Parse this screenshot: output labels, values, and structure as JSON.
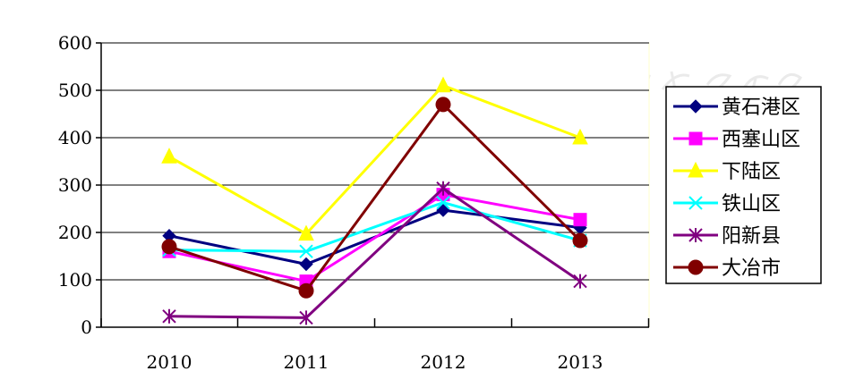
{
  "chart_data": {
    "type": "line",
    "categories": [
      "2010",
      "2011",
      "2012",
      "2013"
    ],
    "ylim": [
      0,
      600
    ],
    "yticks": [
      0,
      100,
      200,
      300,
      400,
      500,
      600
    ],
    "grid": true,
    "legend_position": "right",
    "series": [
      {
        "name": "黄石港区",
        "values": [
          193,
          133,
          247,
          210
        ],
        "color": "#000080",
        "marker": "diamond"
      },
      {
        "name": "西塞山区",
        "values": [
          160,
          97,
          280,
          227
        ],
        "color": "#ff00ff",
        "marker": "square"
      },
      {
        "name": "下陆区",
        "values": [
          360,
          197,
          510,
          400
        ],
        "color": "#ffff00",
        "marker": "triangle"
      },
      {
        "name": "铁山区",
        "values": [
          163,
          160,
          263,
          183
        ],
        "color": "#00ffff",
        "marker": "x"
      },
      {
        "name": "阳新县",
        "values": [
          23,
          20,
          293,
          97
        ],
        "color": "#800080",
        "marker": "star"
      },
      {
        "name": "大冶市",
        "values": [
          170,
          77,
          470,
          183
        ],
        "color": "#800000",
        "marker": "circle"
      }
    ]
  }
}
